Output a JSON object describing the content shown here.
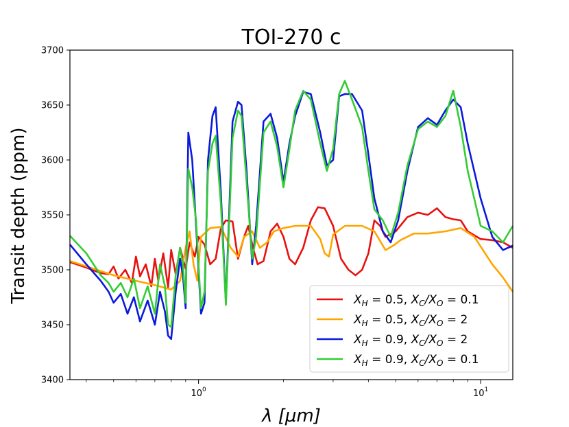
{
  "chart_data": {
    "type": "line",
    "title": "TOI-270 c",
    "xlabel": "λ [μm]",
    "ylabel": "Transit depth (ppm)",
    "xscale": "log",
    "xlim": [
      0.35,
      13
    ],
    "ylim": [
      3400,
      3700
    ],
    "yticks": [
      3400,
      3450,
      3500,
      3550,
      3600,
      3650,
      3700
    ],
    "ytick_labels": [
      "3400",
      "3450",
      "3500",
      "3550",
      "3600",
      "3650",
      "3700"
    ],
    "xticks": [
      1,
      10
    ],
    "xtick_labels": [
      {
        "base": "10",
        "exp": "0"
      },
      {
        "base": "10",
        "exp": "1"
      }
    ],
    "legend_position": "lower-right",
    "series": [
      {
        "name": "X_H = 0.5, X_C/X_O = 0.1",
        "legend": {
          "a": "X",
          "a_sub": "H",
          "b": " = 0.5, ",
          "c": "X",
          "c_sub": "C",
          "d": "/",
          "e": "X",
          "e_sub": "O",
          "f": " = 0.1"
        },
        "color": "#e8110f",
        "points": [
          [
            0.35,
            3507
          ],
          [
            0.4,
            3502
          ],
          [
            0.45,
            3497
          ],
          [
            0.48,
            3496
          ],
          [
            0.5,
            3503
          ],
          [
            0.52,
            3492
          ],
          [
            0.55,
            3500
          ],
          [
            0.58,
            3488
          ],
          [
            0.6,
            3512
          ],
          [
            0.62,
            3494
          ],
          [
            0.65,
            3505
          ],
          [
            0.68,
            3485
          ],
          [
            0.7,
            3510
          ],
          [
            0.72,
            3490
          ],
          [
            0.75,
            3515
          ],
          [
            0.78,
            3484
          ],
          [
            0.8,
            3518
          ],
          [
            0.83,
            3496
          ],
          [
            0.86,
            3520
          ],
          [
            0.9,
            3501
          ],
          [
            0.93,
            3525
          ],
          [
            0.97,
            3512
          ],
          [
            1.0,
            3530
          ],
          [
            1.05,
            3523
          ],
          [
            1.1,
            3505
          ],
          [
            1.15,
            3510
          ],
          [
            1.2,
            3538
          ],
          [
            1.25,
            3545
          ],
          [
            1.32,
            3544
          ],
          [
            1.38,
            3510
          ],
          [
            1.45,
            3530
          ],
          [
            1.5,
            3540
          ],
          [
            1.56,
            3520
          ],
          [
            1.62,
            3505
          ],
          [
            1.7,
            3508
          ],
          [
            1.8,
            3535
          ],
          [
            1.9,
            3542
          ],
          [
            2.0,
            3530
          ],
          [
            2.1,
            3510
          ],
          [
            2.2,
            3505
          ],
          [
            2.35,
            3520
          ],
          [
            2.5,
            3545
          ],
          [
            2.65,
            3557
          ],
          [
            2.8,
            3556
          ],
          [
            3.0,
            3540
          ],
          [
            3.2,
            3510
          ],
          [
            3.4,
            3500
          ],
          [
            3.6,
            3495
          ],
          [
            3.8,
            3500
          ],
          [
            4.0,
            3515
          ],
          [
            4.2,
            3545
          ],
          [
            4.4,
            3540
          ],
          [
            4.6,
            3530
          ],
          [
            5.0,
            3535
          ],
          [
            5.5,
            3548
          ],
          [
            6.0,
            3552
          ],
          [
            6.5,
            3550
          ],
          [
            7.0,
            3556
          ],
          [
            7.5,
            3548
          ],
          [
            8.0,
            3546
          ],
          [
            8.5,
            3545
          ],
          [
            9.0,
            3535
          ],
          [
            10.0,
            3528
          ],
          [
            11.0,
            3527
          ],
          [
            12.0,
            3525
          ],
          [
            13.0,
            3520
          ]
        ]
      },
      {
        "name": "X_H = 0.5, X_C/X_O = 2",
        "legend": {
          "a": "X",
          "a_sub": "H",
          "b": " = 0.5, ",
          "c": "X",
          "c_sub": "C",
          "d": "/",
          "e": "X",
          "e_sub": "O",
          "f": " = 2"
        },
        "color": "#ffa500",
        "points": [
          [
            0.35,
            3508
          ],
          [
            0.5,
            3495
          ],
          [
            0.6,
            3490
          ],
          [
            0.7,
            3486
          ],
          [
            0.75,
            3484
          ],
          [
            0.8,
            3482
          ],
          [
            0.86,
            3490
          ],
          [
            0.9,
            3520
          ],
          [
            0.93,
            3535
          ],
          [
            0.96,
            3505
          ],
          [
            0.99,
            3490
          ],
          [
            1.02,
            3530
          ],
          [
            1.1,
            3538
          ],
          [
            1.2,
            3539
          ],
          [
            1.3,
            3520
          ],
          [
            1.38,
            3512
          ],
          [
            1.45,
            3530
          ],
          [
            1.55,
            3535
          ],
          [
            1.65,
            3520
          ],
          [
            1.75,
            3525
          ],
          [
            1.85,
            3535
          ],
          [
            2.0,
            3538
          ],
          [
            2.2,
            3540
          ],
          [
            2.5,
            3540
          ],
          [
            2.7,
            3528
          ],
          [
            2.8,
            3515
          ],
          [
            2.9,
            3512
          ],
          [
            3.0,
            3532
          ],
          [
            3.3,
            3540
          ],
          [
            3.8,
            3540
          ],
          [
            4.2,
            3535
          ],
          [
            4.6,
            3518
          ],
          [
            4.9,
            3522
          ],
          [
            5.2,
            3527
          ],
          [
            5.8,
            3533
          ],
          [
            6.5,
            3533
          ],
          [
            7.5,
            3535
          ],
          [
            8.5,
            3538
          ],
          [
            9.5,
            3530
          ],
          [
            11.0,
            3505
          ],
          [
            12.0,
            3493
          ],
          [
            13.0,
            3480
          ]
        ]
      },
      {
        "name": "X_H = 0.9, X_C/X_O = 2",
        "legend": {
          "a": "X",
          "a_sub": "H",
          "b": " = 0.9, ",
          "c": "X",
          "c_sub": "C",
          "d": "/",
          "e": "X",
          "e_sub": "O",
          "f": " = 2"
        },
        "color": "#0b19dc",
        "points": [
          [
            0.35,
            3523
          ],
          [
            0.4,
            3505
          ],
          [
            0.45,
            3490
          ],
          [
            0.48,
            3480
          ],
          [
            0.5,
            3470
          ],
          [
            0.53,
            3478
          ],
          [
            0.56,
            3460
          ],
          [
            0.59,
            3475
          ],
          [
            0.62,
            3453
          ],
          [
            0.66,
            3472
          ],
          [
            0.7,
            3450
          ],
          [
            0.73,
            3480
          ],
          [
            0.76,
            3462
          ],
          [
            0.78,
            3440
          ],
          [
            0.8,
            3437
          ],
          [
            0.83,
            3480
          ],
          [
            0.86,
            3510
          ],
          [
            0.88,
            3495
          ],
          [
            0.9,
            3465
          ],
          [
            0.92,
            3625
          ],
          [
            0.95,
            3600
          ],
          [
            0.98,
            3540
          ],
          [
            1.02,
            3460
          ],
          [
            1.05,
            3470
          ],
          [
            1.08,
            3600
          ],
          [
            1.12,
            3640
          ],
          [
            1.15,
            3648
          ],
          [
            1.2,
            3570
          ],
          [
            1.25,
            3470
          ],
          [
            1.32,
            3635
          ],
          [
            1.38,
            3653
          ],
          [
            1.42,
            3650
          ],
          [
            1.48,
            3590
          ],
          [
            1.55,
            3505
          ],
          [
            1.6,
            3540
          ],
          [
            1.7,
            3635
          ],
          [
            1.8,
            3642
          ],
          [
            1.9,
            3620
          ],
          [
            2.0,
            3580
          ],
          [
            2.1,
            3615
          ],
          [
            2.2,
            3640
          ],
          [
            2.35,
            3662
          ],
          [
            2.5,
            3660
          ],
          [
            2.7,
            3625
          ],
          [
            2.85,
            3595
          ],
          [
            3.0,
            3600
          ],
          [
            3.15,
            3658
          ],
          [
            3.3,
            3660
          ],
          [
            3.5,
            3660
          ],
          [
            3.8,
            3645
          ],
          [
            4.0,
            3605
          ],
          [
            4.2,
            3565
          ],
          [
            4.5,
            3535
          ],
          [
            4.8,
            3525
          ],
          [
            5.1,
            3545
          ],
          [
            5.5,
            3590
          ],
          [
            6.0,
            3630
          ],
          [
            6.5,
            3638
          ],
          [
            7.0,
            3632
          ],
          [
            7.5,
            3645
          ],
          [
            8.0,
            3655
          ],
          [
            8.5,
            3648
          ],
          [
            9.0,
            3615
          ],
          [
            10.0,
            3565
          ],
          [
            11.0,
            3530
          ],
          [
            12.0,
            3518
          ],
          [
            13.0,
            3522
          ]
        ]
      },
      {
        "name": "X_H = 0.9, X_C/X_O = 0.1",
        "legend": {
          "a": "X",
          "a_sub": "H",
          "b": " = 0.9, ",
          "c": "X",
          "c_sub": "C",
          "d": "/",
          "e": "X",
          "e_sub": "O",
          "f": " = 0.1"
        },
        "color": "#33cc33",
        "points": [
          [
            0.35,
            3531
          ],
          [
            0.4,
            3515
          ],
          [
            0.45,
            3495
          ],
          [
            0.48,
            3488
          ],
          [
            0.5,
            3480
          ],
          [
            0.53,
            3488
          ],
          [
            0.56,
            3475
          ],
          [
            0.59,
            3492
          ],
          [
            0.62,
            3465
          ],
          [
            0.66,
            3485
          ],
          [
            0.7,
            3460
          ],
          [
            0.73,
            3505
          ],
          [
            0.76,
            3485
          ],
          [
            0.78,
            3450
          ],
          [
            0.8,
            3448
          ],
          [
            0.83,
            3495
          ],
          [
            0.86,
            3520
          ],
          [
            0.88,
            3505
          ],
          [
            0.9,
            3470
          ],
          [
            0.92,
            3592
          ],
          [
            0.95,
            3575
          ],
          [
            0.98,
            3545
          ],
          [
            1.02,
            3465
          ],
          [
            1.05,
            3480
          ],
          [
            1.08,
            3590
          ],
          [
            1.12,
            3615
          ],
          [
            1.15,
            3622
          ],
          [
            1.2,
            3560
          ],
          [
            1.25,
            3468
          ],
          [
            1.32,
            3620
          ],
          [
            1.38,
            3645
          ],
          [
            1.42,
            3640
          ],
          [
            1.48,
            3580
          ],
          [
            1.55,
            3510
          ],
          [
            1.6,
            3530
          ],
          [
            1.7,
            3625
          ],
          [
            1.8,
            3635
          ],
          [
            1.9,
            3612
          ],
          [
            2.0,
            3575
          ],
          [
            2.1,
            3610
          ],
          [
            2.2,
            3645
          ],
          [
            2.35,
            3663
          ],
          [
            2.5,
            3655
          ],
          [
            2.7,
            3615
          ],
          [
            2.85,
            3590
          ],
          [
            3.0,
            3610
          ],
          [
            3.15,
            3660
          ],
          [
            3.3,
            3672
          ],
          [
            3.5,
            3655
          ],
          [
            3.8,
            3630
          ],
          [
            4.0,
            3590
          ],
          [
            4.2,
            3555
          ],
          [
            4.5,
            3545
          ],
          [
            4.8,
            3530
          ],
          [
            5.1,
            3552
          ],
          [
            5.5,
            3595
          ],
          [
            6.0,
            3628
          ],
          [
            6.5,
            3635
          ],
          [
            7.0,
            3630
          ],
          [
            7.5,
            3640
          ],
          [
            8.0,
            3663
          ],
          [
            8.5,
            3630
          ],
          [
            9.0,
            3590
          ],
          [
            10.0,
            3540
          ],
          [
            11.0,
            3535
          ],
          [
            12.0,
            3525
          ],
          [
            13.0,
            3540
          ]
        ]
      }
    ]
  }
}
